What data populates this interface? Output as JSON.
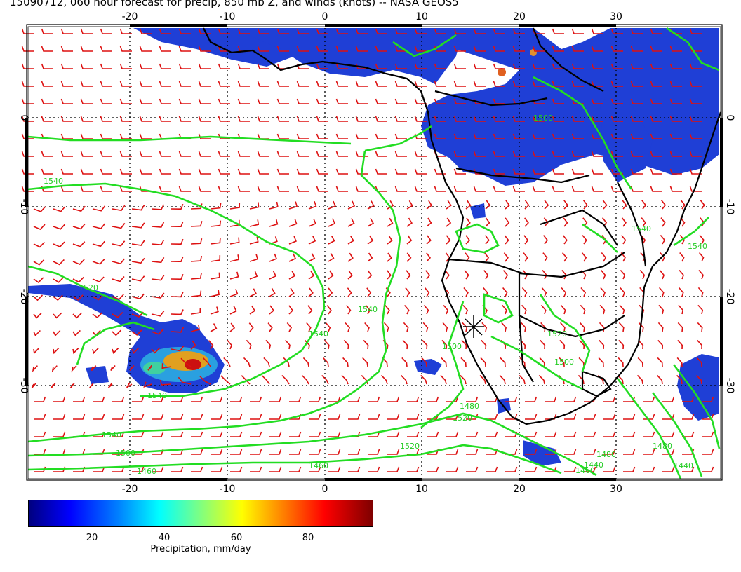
{
  "title": "15090712, 060 hour forecast for precip, 850 mb Z, and winds (knots) -- NASA GEOS5",
  "map": {
    "lon_range": [
      -30,
      40
    ],
    "lat_range": [
      -40,
      10
    ],
    "lon_ticks": [
      "-20",
      "-10",
      "0",
      "10",
      "20",
      "30"
    ],
    "lat_ticks": [
      "0",
      "-10",
      "-20",
      "-30"
    ],
    "grid": true,
    "contour_color": "#22dd22",
    "wind_barb_color": "#dd1111",
    "precip_color": "#1133cc",
    "contour_labels": [
      "1540",
      "1520",
      "1540",
      "1500",
      "1540",
      "1540",
      "1520",
      "1480",
      "1460",
      "1500",
      "1540",
      "1500",
      "1520",
      "1440",
      "1480",
      "1480",
      "1460",
      "1440",
      "1460",
      "1540",
      "1540",
      "1500",
      "1520"
    ]
  },
  "colorbar": {
    "ticks": [
      "20",
      "40",
      "60",
      "80"
    ],
    "label": "Precipitation, mm/day"
  }
}
